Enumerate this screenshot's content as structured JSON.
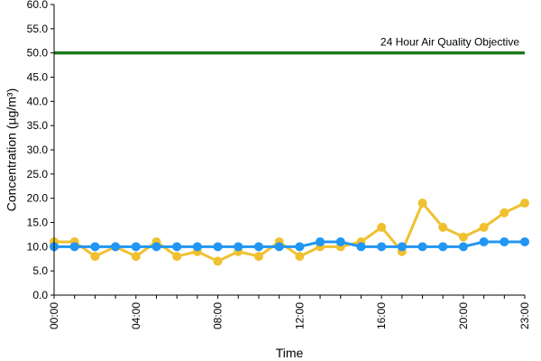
{
  "chart_data": {
    "type": "line",
    "title": "",
    "xlabel": "Time",
    "ylabel": "Concentration (µg/m³)",
    "ylim": [
      0,
      60
    ],
    "y_ticks": [
      "0.0",
      "5.0",
      "10.0",
      "15.0",
      "20.0",
      "25.0",
      "30.0",
      "35.0",
      "40.0",
      "45.0",
      "50.0",
      "55.0",
      "60.0"
    ],
    "x_tick_labels": [
      "00:00",
      "04:00",
      "08:00",
      "12:00",
      "16:00",
      "20:00",
      "23:00"
    ],
    "x_tick_hours": [
      0,
      4,
      8,
      12,
      16,
      20,
      23
    ],
    "x": [
      0,
      1,
      2,
      3,
      4,
      5,
      6,
      7,
      8,
      9,
      10,
      11,
      12,
      13,
      14,
      15,
      16,
      17,
      18,
      19,
      20,
      21,
      22,
      23
    ],
    "grid": false,
    "series": [
      {
        "color": "#f0c030",
        "values": [
          11,
          11,
          8,
          10,
          8,
          11,
          8,
          9,
          7,
          9,
          8,
          11,
          8,
          10,
          10,
          11,
          14,
          9,
          19,
          14,
          12,
          14,
          17,
          19
        ]
      },
      {
        "color": "#2196f3",
        "values": [
          10,
          10,
          10,
          10,
          10,
          10,
          10,
          10,
          10,
          10,
          10,
          10,
          10,
          11,
          11,
          10,
          10,
          10,
          10,
          10,
          10,
          11,
          11,
          11
        ]
      }
    ],
    "objective_line": {
      "value": 50,
      "label": "24 Hour Air Quality Objective",
      "color": "#1a7a1a"
    }
  }
}
